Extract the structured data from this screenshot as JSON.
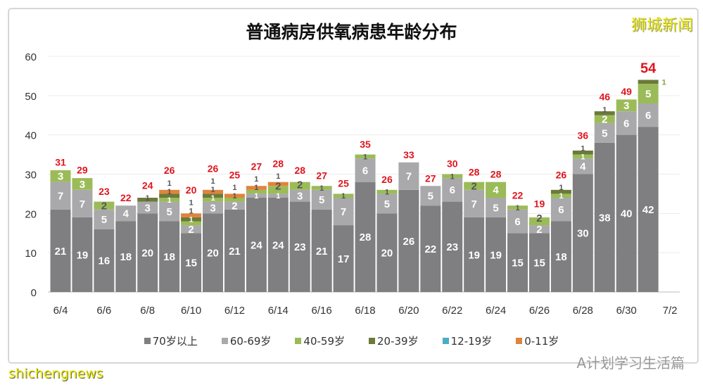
{
  "chart_data": {
    "type": "bar",
    "stacked": true,
    "title": "普通病房供氧病患年龄分布",
    "categories": [
      "6/4",
      "6/5",
      "6/6",
      "6/7",
      "6/8",
      "6/9",
      "6/10",
      "6/11",
      "6/12",
      "6/13",
      "6/14",
      "6/15",
      "6/16",
      "6/17",
      "6/18",
      "6/19",
      "6/20",
      "6/21",
      "6/22",
      "6/23",
      "6/24",
      "6/25",
      "6/26",
      "6/27",
      "6/28",
      "6/29",
      "6/30",
      "7/1"
    ],
    "xtick_labels": [
      "6/4",
      "6/6",
      "6/8",
      "6/10",
      "6/12",
      "6/14",
      "6/16",
      "6/18",
      "6/20",
      "6/22",
      "6/24",
      "6/26",
      "6/28",
      "6/30",
      "7/2"
    ],
    "ylim": [
      0,
      60
    ],
    "yticks": [
      0,
      10,
      20,
      30,
      40,
      50,
      60
    ],
    "grid": true,
    "legend_position": "bottom",
    "series": [
      {
        "name": "70岁以上",
        "color": "#7f7e80",
        "values": [
          21,
          19,
          16,
          18,
          20,
          18,
          15,
          20,
          21,
          24,
          24,
          23,
          21,
          17,
          28,
          20,
          26,
          22,
          23,
          19,
          19,
          15,
          15,
          18,
          30,
          38,
          40,
          42
        ]
      },
      {
        "name": "60-69岁",
        "color": "#a9a9ab",
        "values": [
          7,
          7,
          5,
          4,
          3,
          5,
          2,
          3,
          2,
          1,
          1,
          3,
          5,
          7,
          6,
          5,
          7,
          5,
          6,
          7,
          5,
          6,
          2,
          6,
          4,
          5,
          6,
          6
        ]
      },
      {
        "name": "40-59岁",
        "color": "#9bbb59",
        "values": [
          3,
          3,
          2,
          0,
          0,
          1,
          1,
          1,
          1,
          1,
          2,
          2,
          1,
          1,
          1,
          1,
          0,
          0,
          1,
          2,
          4,
          1,
          2,
          1,
          1,
          2,
          3,
          5
        ]
      },
      {
        "name": "20-39岁",
        "color": "#6b7a3a",
        "values": [
          0,
          0,
          0,
          0,
          1,
          1,
          1,
          1,
          0,
          0,
          0,
          0,
          0,
          0,
          0,
          0,
          0,
          0,
          0,
          0,
          0,
          0,
          0,
          1,
          1,
          1,
          0,
          1
        ]
      },
      {
        "name": "12-19岁",
        "color": "#4bacc6",
        "values": [
          0,
          0,
          0,
          0,
          0,
          0,
          0,
          0,
          0,
          0,
          0,
          0,
          0,
          0,
          0,
          0,
          0,
          0,
          0,
          0,
          0,
          0,
          0,
          0,
          0,
          0,
          0,
          0
        ]
      },
      {
        "name": "0-11岁",
        "color": "#e0843c",
        "values": [
          0,
          0,
          0,
          0,
          0,
          1,
          1,
          1,
          1,
          1,
          1,
          0,
          0,
          0,
          0,
          0,
          0,
          0,
          0,
          0,
          0,
          0,
          0,
          0,
          0,
          0,
          0,
          0
        ]
      }
    ],
    "totals": [
      31,
      29,
      23,
      22,
      24,
      26,
      20,
      26,
      25,
      27,
      28,
      28,
      27,
      25,
      35,
      26,
      33,
      27,
      30,
      28,
      28,
      22,
      19,
      26,
      36,
      46,
      49,
      54
    ],
    "total_label_color": "#e0141e"
  },
  "logo_text": "狮城新闻",
  "footer_left": "shichengnews",
  "footer_right": "A计划学习生活篇"
}
